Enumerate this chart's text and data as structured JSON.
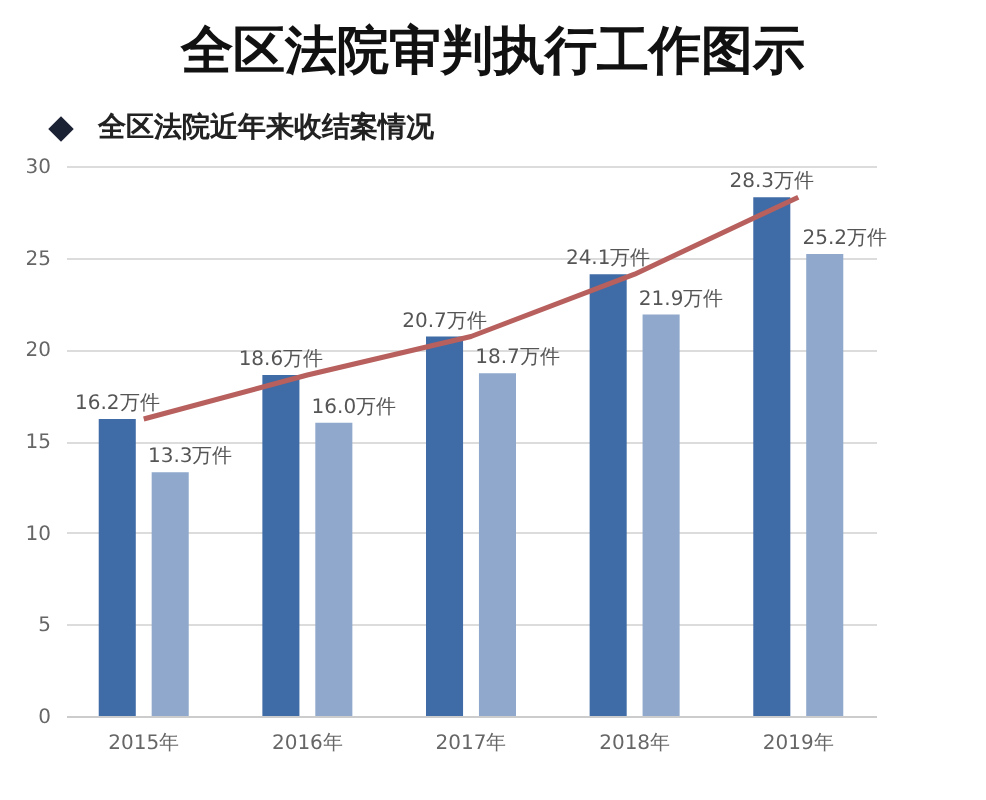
{
  "chart_data": {
    "type": "bar",
    "title": "全区法院审判执行工作图示",
    "subtitle": "全区法院近年来收结案情况",
    "categories": [
      "2015年",
      "2016年",
      "2017年",
      "2018年",
      "2019年"
    ],
    "series": [
      {
        "color": "#3f6ca6",
        "values": [
          16.2,
          18.6,
          20.7,
          24.1,
          28.3
        ],
        "value_labels": [
          "16.2万件",
          "18.6万件",
          "20.7万件",
          "24.1万件",
          "28.3万件"
        ]
      },
      {
        "color": "#8fa8cc",
        "values": [
          13.3,
          16.0,
          18.7,
          21.9,
          25.2
        ],
        "value_labels": [
          "13.3万件",
          "16.0万件",
          "18.7万件",
          "21.9万件",
          "25.2万件"
        ]
      },
      {
        "type": "line",
        "color": "#b8605e",
        "values": [
          16.2,
          18.6,
          20.7,
          24.1,
          28.3
        ]
      }
    ],
    "ylim": [
      0,
      30
    ],
    "yticks": [
      0,
      5,
      10,
      15,
      20,
      25,
      30
    ],
    "grid": "y",
    "legend": false,
    "marker": "none"
  }
}
